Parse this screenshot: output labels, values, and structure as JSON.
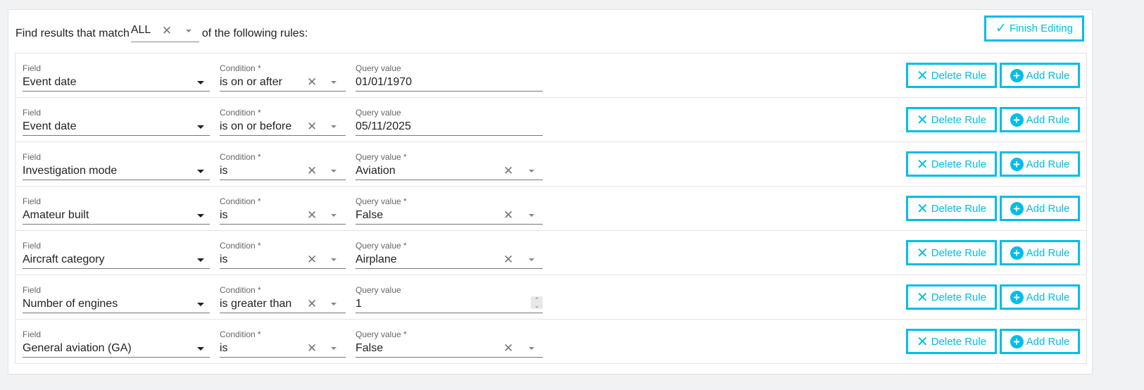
{
  "accent_color": "#00bde8",
  "header": {
    "prefix": "Find results that match",
    "match_value": "ALL",
    "suffix": "of the following rules:",
    "finish_label": "Finish Editing"
  },
  "buttons": {
    "delete_label": "Delete Rule",
    "add_label": "Add Rule"
  },
  "rules": [
    {
      "field_label": "Field",
      "field": "Event date",
      "condition_label": "Condition *",
      "condition": "is on or after",
      "query_label": "Query value",
      "query": "01/01/1970",
      "query_type": "date"
    },
    {
      "field_label": "Field",
      "field": "Event date",
      "condition_label": "Condition *",
      "condition": "is on or before",
      "query_label": "Query value",
      "query": "05/11/2025",
      "query_type": "date"
    },
    {
      "field_label": "Field",
      "field": "Investigation mode",
      "condition_label": "Condition *",
      "condition": "is",
      "query_label": "Query value *",
      "query": "Aviation",
      "query_type": "select"
    },
    {
      "field_label": "Field",
      "field": "Amateur built",
      "condition_label": "Condition *",
      "condition": "is",
      "query_label": "Query value *",
      "query": "False",
      "query_type": "select"
    },
    {
      "field_label": "Field",
      "field": "Aircraft category",
      "condition_label": "Condition *",
      "condition": "is",
      "query_label": "Query value *",
      "query": "Airplane",
      "query_type": "select"
    },
    {
      "field_label": "Field",
      "field": "Number of engines",
      "condition_label": "Condition *",
      "condition": "is greater than",
      "query_label": "Query value",
      "query": "1",
      "query_type": "number"
    },
    {
      "field_label": "Field",
      "field": "General aviation (GA)",
      "condition_label": "Condition *",
      "condition": "is",
      "query_label": "Query value *",
      "query": "False",
      "query_type": "select"
    }
  ]
}
